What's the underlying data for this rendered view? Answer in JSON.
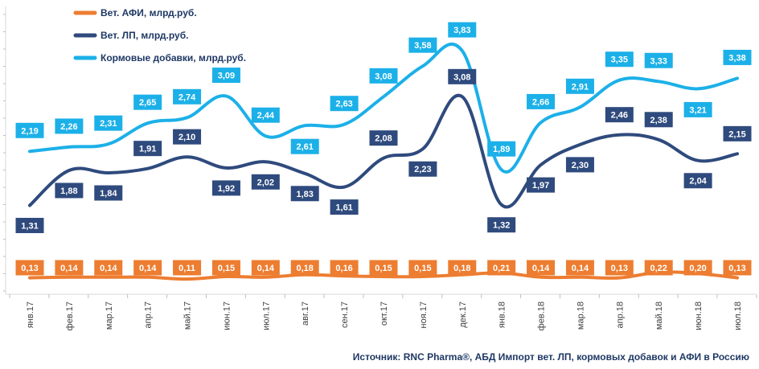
{
  "chart_data": {
    "type": "line",
    "categories": [
      "янв.17",
      "фев.17",
      "мар.17",
      "апр.17",
      "май.17",
      "июн.17",
      "июл.17",
      "авг.17",
      "сен.17",
      "окт.17",
      "ноя.17",
      "дек.17",
      "янв.18",
      "фев.18",
      "мар.18",
      "апр.18",
      "май.18",
      "июн.18",
      "июл.18"
    ],
    "series": [
      {
        "name": "Вет. АФИ, млрд.руб.",
        "color": "#ed7d31",
        "values": [
          0.13,
          0.14,
          0.14,
          0.14,
          0.11,
          0.15,
          0.14,
          0.18,
          0.16,
          0.15,
          0.15,
          0.18,
          0.21,
          0.14,
          0.14,
          0.13,
          0.22,
          0.2,
          0.13
        ],
        "labels": [
          "0,13",
          "0,14",
          "0,14",
          "0,14",
          "0,11",
          "0,15",
          "0,14",
          "0,18",
          "0,16",
          "0,15",
          "0,15",
          "0,18",
          "0,21",
          "0,14",
          "0,14",
          "0,13",
          "0,22",
          "0,20",
          "0,13"
        ]
      },
      {
        "name": "Вет. ЛП, млрд.руб.",
        "color": "#2f4a7d",
        "values": [
          1.31,
          1.88,
          1.84,
          1.91,
          2.1,
          1.92,
          2.02,
          1.83,
          1.61,
          2.08,
          2.23,
          3.08,
          1.32,
          1.97,
          2.3,
          2.46,
          2.38,
          2.04,
          2.15
        ],
        "labels": [
          "1,31",
          "1,88",
          "1,84",
          "1,91",
          "2,10",
          "1,92",
          "2,02",
          "1,83",
          "1,61",
          "2,08",
          "2,23",
          "3,08",
          "1,32",
          "1,97",
          "2,30",
          "2,46",
          "2,38",
          "2,04",
          "2,15"
        ]
      },
      {
        "name": "Кормовые добавки, млрд.руб.",
        "color": "#1cb0e8",
        "values": [
          2.19,
          2.26,
          2.31,
          2.65,
          2.74,
          3.09,
          2.44,
          2.61,
          2.63,
          3.08,
          3.58,
          3.83,
          1.89,
          2.66,
          2.91,
          3.35,
          3.33,
          3.21,
          3.38
        ],
        "labels": [
          "2,19",
          "2,26",
          "2,31",
          "2,65",
          "2,74",
          "3,09",
          "2,44",
          "2,61",
          "2,63",
          "3,08",
          "3,58",
          "3,83",
          "1,89",
          "2,66",
          "2,91",
          "3,35",
          "3,33",
          "3,21",
          "3,38"
        ]
      }
    ],
    "legend_position": "top-left",
    "grid": false
  },
  "footer": {
    "source": "Источник: RNC Pharma®, АБД Импорт вет. ЛП, кормовых добавок и АФИ в Россию"
  }
}
